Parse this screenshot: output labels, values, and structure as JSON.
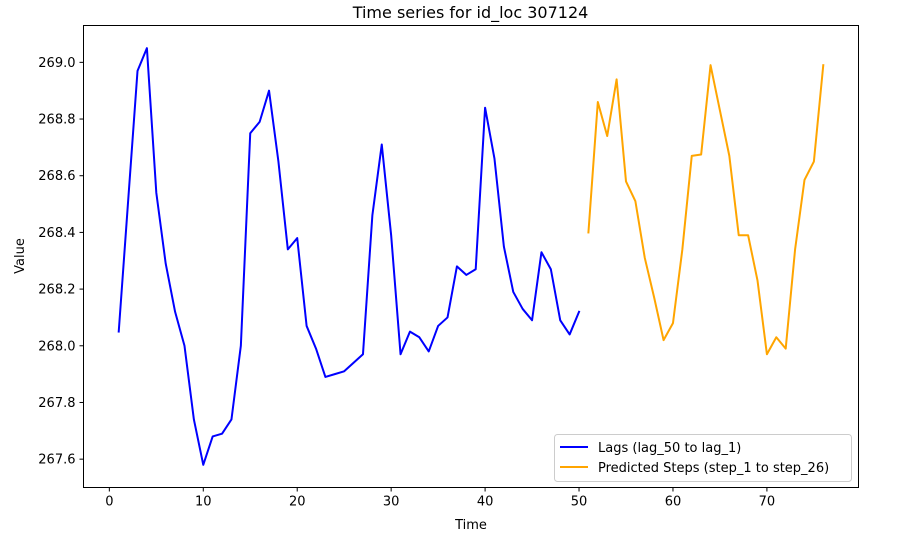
{
  "chart_data": {
    "type": "line",
    "title": "Time series for id_loc 307124",
    "xlabel": "Time",
    "ylabel": "Value",
    "xlim": [
      -2.75,
      79.75
    ],
    "ylim": [
      267.5,
      269.13
    ],
    "xticks": [
      0,
      10,
      20,
      30,
      40,
      50,
      60,
      70
    ],
    "yticks": [
      267.6,
      267.8,
      268.0,
      268.2,
      268.4,
      268.6,
      268.8,
      269.0
    ],
    "grid": false,
    "legend_position": "lower right",
    "series": [
      {
        "name": "Lags (lag_50 to lag_1)",
        "color": "#0000ff",
        "x": [
          1,
          2,
          3,
          4,
          5,
          6,
          7,
          8,
          9,
          10,
          11,
          12,
          13,
          14,
          15,
          16,
          17,
          18,
          19,
          20,
          21,
          22,
          23,
          24,
          25,
          26,
          27,
          28,
          29,
          30,
          31,
          32,
          33,
          34,
          35,
          36,
          37,
          38,
          39,
          40,
          41,
          42,
          43,
          44,
          45,
          46,
          47,
          48,
          49,
          50
        ],
        "y": [
          268.05,
          268.51,
          268.97,
          269.05,
          268.54,
          268.29,
          268.12,
          268.0,
          267.74,
          267.58,
          267.68,
          267.69,
          267.74,
          268.0,
          268.75,
          268.79,
          268.9,
          268.65,
          268.34,
          268.38,
          268.07,
          267.99,
          267.89,
          267.9,
          267.91,
          267.94,
          267.97,
          268.46,
          268.71,
          268.39,
          267.97,
          268.05,
          268.03,
          267.98,
          268.07,
          268.1,
          268.28,
          268.25,
          268.27,
          268.84,
          268.66,
          268.35,
          268.19,
          268.13,
          268.09,
          268.33,
          268.27,
          268.09,
          268.04,
          268.12
        ]
      },
      {
        "name": "Predicted Steps (step_1 to step_26)",
        "color": "#ffa500",
        "x": [
          51,
          52,
          53,
          54,
          55,
          56,
          57,
          58,
          59,
          60,
          61,
          62,
          63,
          64,
          65,
          66,
          67,
          68,
          69,
          70,
          71,
          72,
          73,
          74,
          75,
          76
        ],
        "y": [
          268.4,
          268.86,
          268.74,
          268.94,
          268.58,
          268.51,
          268.31,
          268.17,
          268.02,
          268.08,
          268.34,
          268.67,
          268.675,
          268.99,
          268.83,
          268.67,
          268.39,
          268.39,
          268.23,
          267.97,
          268.03,
          267.99,
          268.34,
          268.585,
          268.65,
          268.99
        ]
      }
    ]
  }
}
